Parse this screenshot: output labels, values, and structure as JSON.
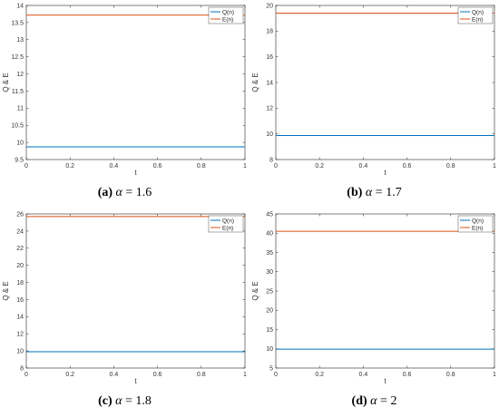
{
  "chart_data": [
    {
      "type": "line",
      "caption": {
        "letter": "(a)",
        "symbol": "α",
        "relation": "=",
        "value": "1.6"
      },
      "xlabel": "t",
      "ylabel": "Q & E",
      "xlim": [
        0,
        1
      ],
      "ylim": [
        9.5,
        14
      ],
      "xticks": [
        "0",
        "0.2",
        "0.4",
        "0.6",
        "0.8",
        "1"
      ],
      "yticks": [
        "9.5",
        "10",
        "10.5",
        "11",
        "11.5",
        "12",
        "12.5",
        "13",
        "13.5",
        "14"
      ],
      "legend_position": "top-right",
      "series": [
        {
          "name": "Q(n)",
          "color": "#0072BD",
          "x": [
            0,
            1
          ],
          "y": [
            9.87,
            9.87
          ]
        },
        {
          "name": "E(n)",
          "color": "#D95319",
          "x": [
            0,
            1
          ],
          "y": [
            13.72,
            13.72
          ]
        }
      ]
    },
    {
      "type": "line",
      "caption": {
        "letter": "(b)",
        "symbol": "α",
        "relation": "=",
        "value": "1.7"
      },
      "xlabel": "t",
      "ylabel": "Q & E",
      "xlim": [
        0,
        1
      ],
      "ylim": [
        8,
        20
      ],
      "xticks": [
        "0",
        "0.2",
        "0.4",
        "0.6",
        "0.8",
        "1"
      ],
      "yticks": [
        "8",
        "10",
        "12",
        "14",
        "16",
        "18",
        "20"
      ],
      "legend_position": "top-right",
      "series": [
        {
          "name": "Q(n)",
          "color": "#0072BD",
          "x": [
            0,
            1
          ],
          "y": [
            9.87,
            9.87
          ]
        },
        {
          "name": "E(n)",
          "color": "#D95319",
          "x": [
            0,
            1
          ],
          "y": [
            19.4,
            19.4
          ]
        }
      ]
    },
    {
      "type": "line",
      "caption": {
        "letter": "(c)",
        "symbol": "α",
        "relation": "=",
        "value": "1.8"
      },
      "xlabel": "t",
      "ylabel": "Q & E",
      "xlim": [
        0,
        1
      ],
      "ylim": [
        8,
        26
      ],
      "xticks": [
        "0",
        "0.2",
        "0.4",
        "0.6",
        "0.8",
        "1"
      ],
      "yticks": [
        "8",
        "10",
        "12",
        "14",
        "16",
        "18",
        "20",
        "22",
        "24",
        "26"
      ],
      "legend_position": "top-right",
      "series": [
        {
          "name": "Q(n)",
          "color": "#0072BD",
          "x": [
            0,
            1
          ],
          "y": [
            9.9,
            9.9
          ]
        },
        {
          "name": "E(n)",
          "color": "#D95319",
          "x": [
            0,
            1
          ],
          "y": [
            25.7,
            25.7
          ]
        }
      ]
    },
    {
      "type": "line",
      "caption": {
        "letter": "(d)",
        "symbol": "α",
        "relation": "=",
        "value": "2"
      },
      "xlabel": "t",
      "ylabel": "Q & E",
      "xlim": [
        0,
        1
      ],
      "ylim": [
        5,
        45
      ],
      "xticks": [
        "0",
        "0.2",
        "0.4",
        "0.6",
        "0.8",
        "1"
      ],
      "yticks": [
        "5",
        "10",
        "15",
        "20",
        "25",
        "30",
        "35",
        "40",
        "45"
      ],
      "legend_position": "top-right",
      "series": [
        {
          "name": "Q(n)",
          "color": "#0072BD",
          "x": [
            0,
            1
          ],
          "y": [
            9.9,
            9.9
          ]
        },
        {
          "name": "E(n)",
          "color": "#D95319",
          "x": [
            0,
            1
          ],
          "y": [
            40.5,
            40.5
          ]
        }
      ]
    }
  ]
}
